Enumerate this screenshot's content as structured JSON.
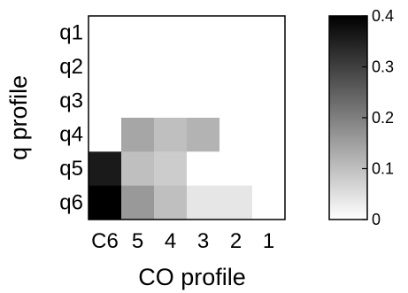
{
  "chart_data": {
    "type": "heatmap",
    "xlabel": "CO profile",
    "ylabel": "q profile",
    "x_categories": [
      "C6",
      "5",
      "4",
      "3",
      "2",
      "1"
    ],
    "y_categories": [
      "q1",
      "q2",
      "q3",
      "q4",
      "q5",
      "q6"
    ],
    "values": [
      [
        0,
        0,
        0,
        0,
        0,
        0
      ],
      [
        0,
        0,
        0,
        0,
        0,
        0
      ],
      [
        0,
        0,
        0,
        0,
        0,
        0
      ],
      [
        0,
        0.14,
        0.1,
        0.12,
        0,
        0
      ],
      [
        0.36,
        0.1,
        0.08,
        0,
        0,
        0
      ],
      [
        0.4,
        0.16,
        0.1,
        0.04,
        0.04,
        0
      ]
    ],
    "colorbar": {
      "range": [
        0,
        0.4
      ],
      "ticks": [
        "0",
        "0.1",
        "0.2",
        "0.3",
        "0.4"
      ],
      "colormap": "gray-reversed"
    },
    "colors": {
      "low": "#ffffff",
      "high": "#000000"
    }
  }
}
